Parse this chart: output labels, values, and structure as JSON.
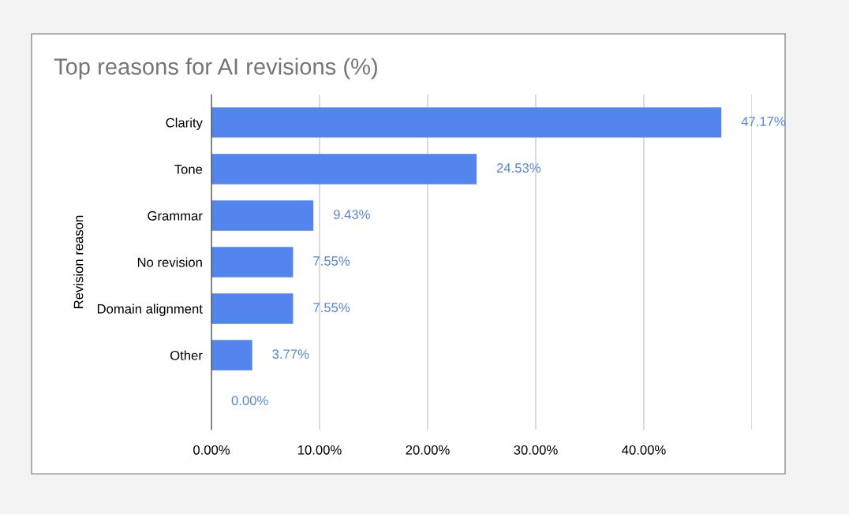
{
  "chart_data": {
    "type": "bar",
    "orientation": "horizontal",
    "title": "Top reasons for AI revisions (%)",
    "ylabel": "Revision reason",
    "categories": [
      "Clarity",
      "Tone",
      "Grammar",
      "No revision",
      "Domain alignment",
      "Other",
      null
    ],
    "values": [
      47.17,
      24.53,
      9.43,
      7.55,
      7.55,
      3.77,
      0.0
    ],
    "value_labels": [
      "47.17%",
      "24.53%",
      "9.43%",
      "7.55%",
      "7.55%",
      "3.77%",
      "0.00%"
    ],
    "color": "#5484ed",
    "xlim": [
      0,
      50
    ],
    "xticks": [
      {
        "value": 0,
        "label": "0.00%"
      },
      {
        "value": 10,
        "label": "10.00%"
      },
      {
        "value": 20,
        "label": "20.00%"
      },
      {
        "value": 30,
        "label": "30.00%"
      },
      {
        "value": 40,
        "label": "40.00%"
      },
      {
        "value": 50,
        "label": null
      }
    ],
    "grid": "x",
    "legend": false
  }
}
